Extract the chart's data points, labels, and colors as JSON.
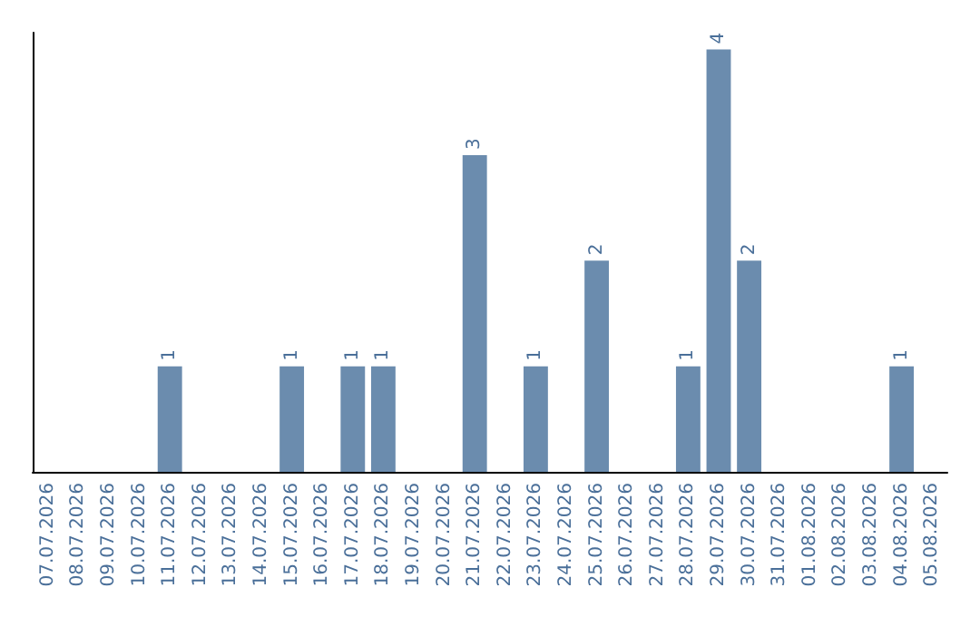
{
  "chart_data": {
    "type": "bar",
    "categories": [
      "07.07.2026",
      "08.07.2026",
      "09.07.2026",
      "10.07.2026",
      "11.07.2026",
      "12.07.2026",
      "13.07.2026",
      "14.07.2026",
      "15.07.2026",
      "16.07.2026",
      "17.07.2026",
      "18.07.2026",
      "19.07.2026",
      "20.07.2026",
      "21.07.2026",
      "22.07.2026",
      "23.07.2026",
      "24.07.2026",
      "25.07.2026",
      "26.07.2026",
      "27.07.2026",
      "28.07.2026",
      "29.07.2026",
      "30.07.2026",
      "31.07.2026",
      "01.08.2026",
      "02.08.2026",
      "03.08.2026",
      "04.08.2026",
      "05.08.2026"
    ],
    "values": [
      0,
      0,
      0,
      0,
      1,
      0,
      0,
      0,
      1,
      0,
      1,
      1,
      0,
      0,
      3,
      0,
      1,
      0,
      2,
      0,
      0,
      1,
      4,
      2,
      0,
      0,
      0,
      0,
      1,
      0
    ],
    "value_labels": [
      null,
      null,
      null,
      null,
      "1",
      null,
      null,
      null,
      "1",
      null,
      "1",
      "1",
      null,
      null,
      "3",
      null,
      "1",
      null,
      "2",
      null,
      null,
      "1",
      "4",
      "2",
      null,
      null,
      null,
      null,
      "1",
      null
    ],
    "color": "#6b8cae",
    "ylim": [
      0,
      4
    ],
    "tick_labels": "x"
  }
}
